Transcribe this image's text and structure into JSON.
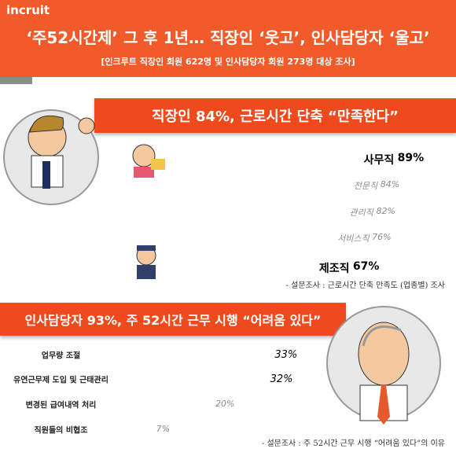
{
  "header": {
    "logo": "incruit",
    "title": "‘주52시간제’ 그 후 1년… 직장인 ‘웃고’, 인사담당자 ‘울고’",
    "subtitle": "[인크루트 직장인 회원 622명 및 인사담당자 회원 273명 대상 조사]"
  },
  "chart_data": [
    {
      "type": "hbar",
      "title": "직장인 84%, 근로시간 단축 “만족한다”",
      "categories": [
        "사무직",
        "전문직",
        "관리직",
        "서비스직",
        "제조직"
      ],
      "values": [
        89,
        84,
        82,
        76,
        67
      ],
      "value_labels": [
        "89%",
        "84%",
        "82%",
        "76%",
        "67%"
      ],
      "colors": [
        "#c3161c",
        "#8c8c8c",
        "#8c8c8c",
        "#8c8c8c",
        "#1f6cc0"
      ],
      "highlight": [
        true,
        false,
        false,
        false,
        true
      ],
      "note": "- 설문조사 : 근로시간 단축 만족도 (업종별) 조사"
    },
    {
      "type": "hbar",
      "title": "인사담당자 93%, 주 52시간 근무 시행 “어려움 있다”",
      "categories": [
        "업무량 조절",
        "유연근무제 도입 및 근태관리",
        "변경된 급여내역 처리",
        "직원들의 비협조"
      ],
      "values": [
        33,
        32,
        20,
        7
      ],
      "value_labels": [
        "33%",
        "32%",
        "20%",
        "7%"
      ],
      "colors": [
        "#c3161c",
        "#c3161c",
        "#8c8c8c",
        "#8c8c8c"
      ],
      "highlight": [
        true,
        true,
        false,
        false
      ],
      "note": "- 설문조사 : 주 52시간 근무 시행 “어려움 있다”의 이유"
    }
  ]
}
